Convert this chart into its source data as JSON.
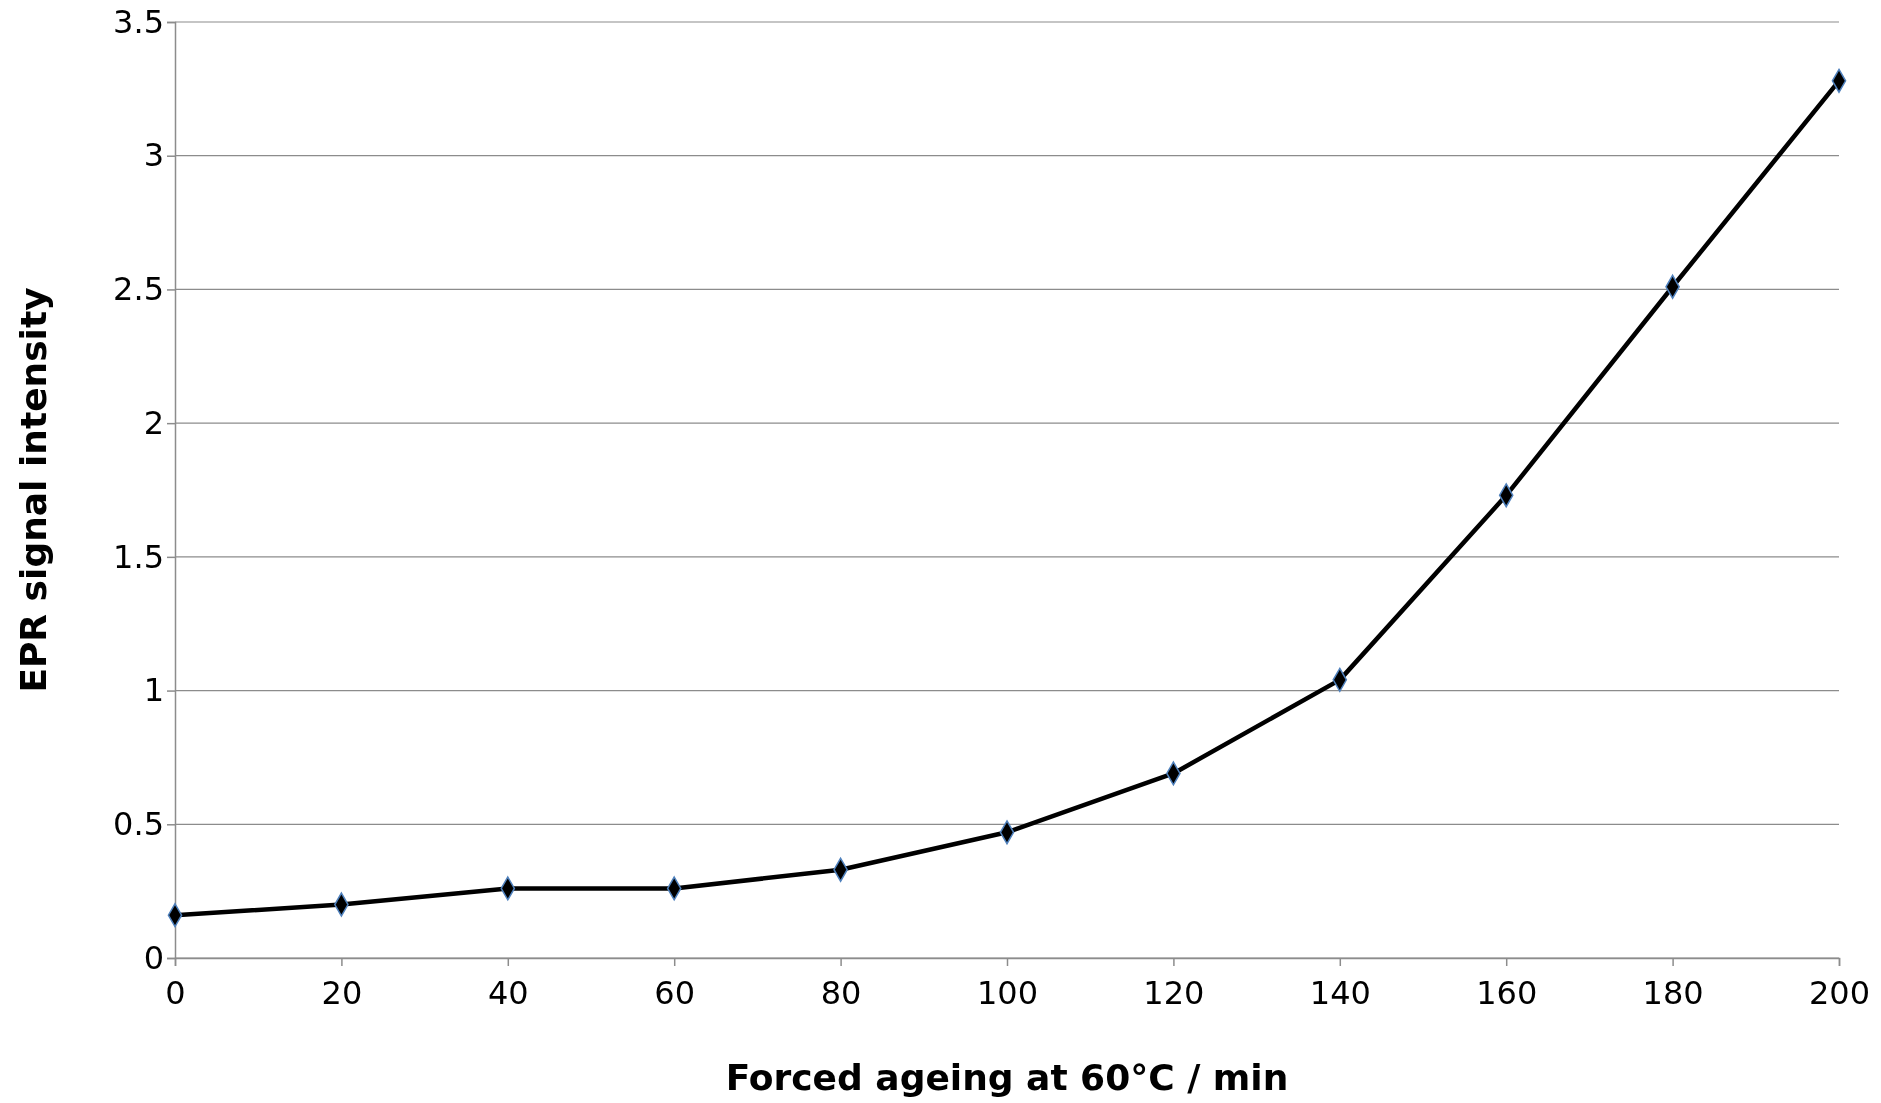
{
  "chart_data": {
    "type": "line",
    "xlabel": "Forced ageing at 60°C / min",
    "ylabel": "EPR signal intensity",
    "x": [
      0,
      20,
      40,
      60,
      80,
      100,
      120,
      140,
      160,
      180,
      200
    ],
    "series": [
      {
        "color": "#000000",
        "values": [
          0.16,
          0.2,
          0.26,
          0.26,
          0.33,
          0.47,
          0.69,
          1.04,
          1.73,
          2.51,
          3.28
        ]
      }
    ],
    "xlim": [
      0,
      200
    ],
    "xticks": [
      0,
      20,
      40,
      60,
      80,
      100,
      120,
      140,
      160,
      180,
      200
    ],
    "ylim": [
      0,
      3.5
    ],
    "yticks": [
      0,
      {
        "value": 0.5,
        "label": "0.5"
      },
      1,
      {
        "value": 1.5,
        "label": "1.5"
      },
      2,
      {
        "value": 2.5,
        "label": "2.5"
      },
      3,
      {
        "value": 3.5,
        "label": "3.5"
      }
    ],
    "grid": "y",
    "marker": "diamond",
    "line_style": "solid"
  }
}
